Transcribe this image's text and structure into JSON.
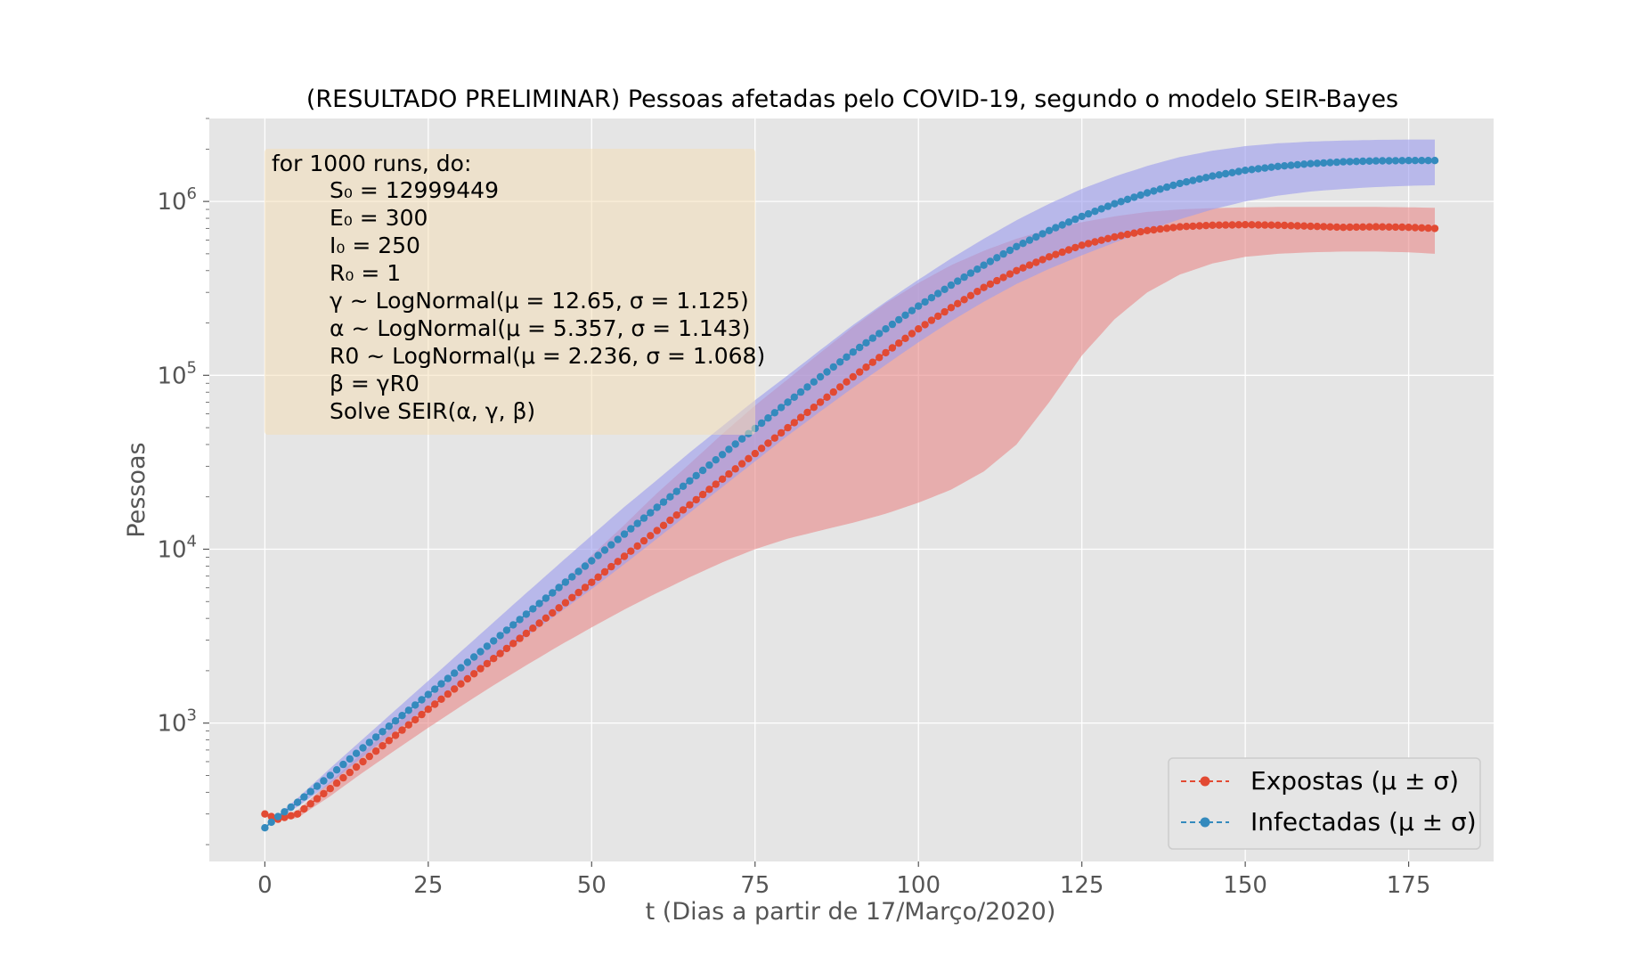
{
  "chart_data": {
    "type": "line",
    "title": "(RESULTADO PRELIMINAR) Pessoas afetadas pelo COVID-19, segundo o modelo SEIR-Bayes",
    "xlabel": "t (Dias a partir de 17/Março/2020)",
    "ylabel": "Pessoas",
    "yscale": "log",
    "xlim": [
      -8.5,
      188
    ],
    "ylim": [
      160,
      3000000
    ],
    "xticks": [
      0,
      25,
      50,
      75,
      100,
      125,
      150,
      175
    ],
    "yticks": [
      {
        "value": 1000,
        "base": "10",
        "exp": "3"
      },
      {
        "value": 10000,
        "base": "10",
        "exp": "4"
      },
      {
        "value": 100000,
        "base": "10",
        "exp": "5"
      },
      {
        "value": 1000000,
        "base": "10",
        "exp": "6"
      }
    ],
    "grid": true,
    "background": "#e5e5e5",
    "legend_position": "lower-right",
    "x_range": [
      0,
      179
    ],
    "series": [
      {
        "name": "Expostas (μ ± σ)",
        "color": "#e24a33",
        "band_color": "#e88a8a",
        "mean": [
          [
            0,
            300
          ],
          [
            2,
            280
          ],
          [
            5,
            300
          ],
          [
            10,
            420
          ],
          [
            15,
            600
          ],
          [
            20,
            850
          ],
          [
            25,
            1200
          ],
          [
            30,
            1680
          ],
          [
            35,
            2350
          ],
          [
            40,
            3280
          ],
          [
            45,
            4600
          ],
          [
            50,
            6450
          ],
          [
            55,
            9100
          ],
          [
            60,
            12800
          ],
          [
            65,
            18000
          ],
          [
            70,
            25300
          ],
          [
            75,
            35500
          ],
          [
            80,
            50000
          ],
          [
            85,
            70000
          ],
          [
            90,
            98000
          ],
          [
            95,
            135000
          ],
          [
            100,
            185000
          ],
          [
            105,
            245000
          ],
          [
            110,
            320000
          ],
          [
            115,
            400000
          ],
          [
            120,
            480000
          ],
          [
            125,
            560000
          ],
          [
            130,
            625000
          ],
          [
            135,
            680000
          ],
          [
            140,
            715000
          ],
          [
            145,
            730000
          ],
          [
            150,
            735000
          ],
          [
            155,
            730000
          ],
          [
            160,
            720000
          ],
          [
            165,
            710000
          ],
          [
            170,
            715000
          ],
          [
            175,
            710000
          ],
          [
            179,
            700000
          ]
        ],
        "upper": [
          [
            0,
            300
          ],
          [
            2,
            285
          ],
          [
            5,
            315
          ],
          [
            10,
            460
          ],
          [
            15,
            680
          ],
          [
            20,
            990
          ],
          [
            25,
            1400
          ],
          [
            30,
            2000
          ],
          [
            35,
            2900
          ],
          [
            40,
            4200
          ],
          [
            45,
            6200
          ],
          [
            50,
            9200
          ],
          [
            55,
            13800
          ],
          [
            60,
            21000
          ],
          [
            65,
            31000
          ],
          [
            70,
            46000
          ],
          [
            75,
            67000
          ],
          [
            80,
            95000
          ],
          [
            85,
            135000
          ],
          [
            90,
            190000
          ],
          [
            95,
            260000
          ],
          [
            100,
            340000
          ],
          [
            105,
            430000
          ],
          [
            110,
            520000
          ],
          [
            115,
            610000
          ],
          [
            120,
            690000
          ],
          [
            125,
            760000
          ],
          [
            130,
            820000
          ],
          [
            135,
            870000
          ],
          [
            140,
            900000
          ],
          [
            145,
            915000
          ],
          [
            150,
            925000
          ],
          [
            155,
            930000
          ],
          [
            160,
            930000
          ],
          [
            165,
            930000
          ],
          [
            170,
            930000
          ],
          [
            175,
            925000
          ],
          [
            179,
            920000
          ]
        ],
        "lower": [
          [
            0,
            300
          ],
          [
            2,
            275
          ],
          [
            5,
            285
          ],
          [
            10,
            380
          ],
          [
            15,
            520
          ],
          [
            20,
            700
          ],
          [
            25,
            940
          ],
          [
            30,
            1250
          ],
          [
            35,
            1650
          ],
          [
            40,
            2150
          ],
          [
            45,
            2780
          ],
          [
            50,
            3550
          ],
          [
            55,
            4500
          ],
          [
            60,
            5600
          ],
          [
            65,
            6900
          ],
          [
            70,
            8400
          ],
          [
            75,
            10000
          ],
          [
            80,
            11500
          ],
          [
            85,
            12800
          ],
          [
            90,
            14200
          ],
          [
            95,
            16000
          ],
          [
            100,
            18500
          ],
          [
            105,
            22000
          ],
          [
            110,
            28000
          ],
          [
            115,
            40000
          ],
          [
            120,
            70000
          ],
          [
            125,
            130000
          ],
          [
            130,
            210000
          ],
          [
            135,
            300000
          ],
          [
            140,
            380000
          ],
          [
            145,
            440000
          ],
          [
            150,
            480000
          ],
          [
            155,
            500000
          ],
          [
            160,
            510000
          ],
          [
            165,
            515000
          ],
          [
            170,
            515000
          ],
          [
            175,
            510000
          ],
          [
            179,
            500000
          ]
        ]
      },
      {
        "name": "Infectadas (μ ± σ)",
        "color": "#348abd",
        "band_color": "#9d9dee",
        "mean": [
          [
            0,
            250
          ],
          [
            2,
            290
          ],
          [
            5,
            350
          ],
          [
            10,
            500
          ],
          [
            15,
            720
          ],
          [
            20,
            1030
          ],
          [
            25,
            1460
          ],
          [
            30,
            2080
          ],
          [
            35,
            2970
          ],
          [
            40,
            4230
          ],
          [
            45,
            6020
          ],
          [
            50,
            8580
          ],
          [
            55,
            12200
          ],
          [
            60,
            17400
          ],
          [
            65,
            24700
          ],
          [
            70,
            35000
          ],
          [
            75,
            49500
          ],
          [
            80,
            70000
          ],
          [
            85,
            98000
          ],
          [
            90,
            136000
          ],
          [
            95,
            185000
          ],
          [
            100,
            250000
          ],
          [
            105,
            330000
          ],
          [
            110,
            430000
          ],
          [
            115,
            550000
          ],
          [
            120,
            680000
          ],
          [
            125,
            820000
          ],
          [
            130,
            970000
          ],
          [
            135,
            1120000
          ],
          [
            140,
            1270000
          ],
          [
            145,
            1400000
          ],
          [
            150,
            1510000
          ],
          [
            155,
            1590000
          ],
          [
            160,
            1650000
          ],
          [
            165,
            1690000
          ],
          [
            170,
            1710000
          ],
          [
            175,
            1720000
          ],
          [
            179,
            1720000
          ]
        ],
        "upper": [
          [
            0,
            250
          ],
          [
            2,
            295
          ],
          [
            5,
            370
          ],
          [
            10,
            550
          ],
          [
            15,
            810
          ],
          [
            20,
            1190
          ],
          [
            25,
            1750
          ],
          [
            30,
            2580
          ],
          [
            35,
            3800
          ],
          [
            40,
            5600
          ],
          [
            45,
            8200
          ],
          [
            50,
            12000
          ],
          [
            55,
            17500
          ],
          [
            60,
            25000
          ],
          [
            65,
            36000
          ],
          [
            70,
            51000
          ],
          [
            75,
            72000
          ],
          [
            80,
            100000
          ],
          [
            85,
            140000
          ],
          [
            90,
            195000
          ],
          [
            95,
            265000
          ],
          [
            100,
            355000
          ],
          [
            105,
            470000
          ],
          [
            110,
            610000
          ],
          [
            115,
            780000
          ],
          [
            120,
            970000
          ],
          [
            125,
            1180000
          ],
          [
            130,
            1390000
          ],
          [
            135,
            1600000
          ],
          [
            140,
            1800000
          ],
          [
            145,
            1960000
          ],
          [
            150,
            2080000
          ],
          [
            155,
            2160000
          ],
          [
            160,
            2210000
          ],
          [
            165,
            2240000
          ],
          [
            170,
            2260000
          ],
          [
            175,
            2270000
          ],
          [
            179,
            2270000
          ]
        ],
        "lower": [
          [
            0,
            250
          ],
          [
            2,
            285
          ],
          [
            5,
            330
          ],
          [
            10,
            450
          ],
          [
            15,
            640
          ],
          [
            20,
            900
          ],
          [
            25,
            1240
          ],
          [
            30,
            1700
          ],
          [
            35,
            2300
          ],
          [
            40,
            3150
          ],
          [
            45,
            4300
          ],
          [
            50,
            5900
          ],
          [
            55,
            8200
          ],
          [
            60,
            11500
          ],
          [
            65,
            16200
          ],
          [
            70,
            22800
          ],
          [
            75,
            32000
          ],
          [
            80,
            45000
          ],
          [
            85,
            62000
          ],
          [
            90,
            85000
          ],
          [
            95,
            115000
          ],
          [
            100,
            155000
          ],
          [
            105,
            205000
          ],
          [
            110,
            265000
          ],
          [
            115,
            335000
          ],
          [
            120,
            410000
          ],
          [
            125,
            490000
          ],
          [
            130,
            580000
          ],
          [
            135,
            680000
          ],
          [
            140,
            790000
          ],
          [
            145,
            900000
          ],
          [
            150,
            1000000
          ],
          [
            155,
            1080000
          ],
          [
            160,
            1140000
          ],
          [
            165,
            1180000
          ],
          [
            170,
            1210000
          ],
          [
            175,
            1230000
          ],
          [
            179,
            1240000
          ]
        ]
      }
    ]
  },
  "annotation_box": {
    "header": "for 1000 runs, do:",
    "lines": [
      "S₀ = 12999449",
      "E₀ = 300",
      "I₀ = 250",
      "R₀ = 1",
      "γ ~ LogNormal(μ = 12.65, σ = 1.125)",
      "α ~ LogNormal(μ = 5.357, σ = 1.143)",
      "R0 ~ LogNormal(μ = 2.236, σ = 1.068)",
      "β = γR0",
      "Solve SEIR(α, γ, β)"
    ],
    "background": "#f5deb3"
  },
  "legend": {
    "items": [
      {
        "label": "Expostas (μ ± σ)",
        "color": "#e24a33"
      },
      {
        "label": "Infectadas (μ ± σ)",
        "color": "#348abd"
      }
    ]
  }
}
